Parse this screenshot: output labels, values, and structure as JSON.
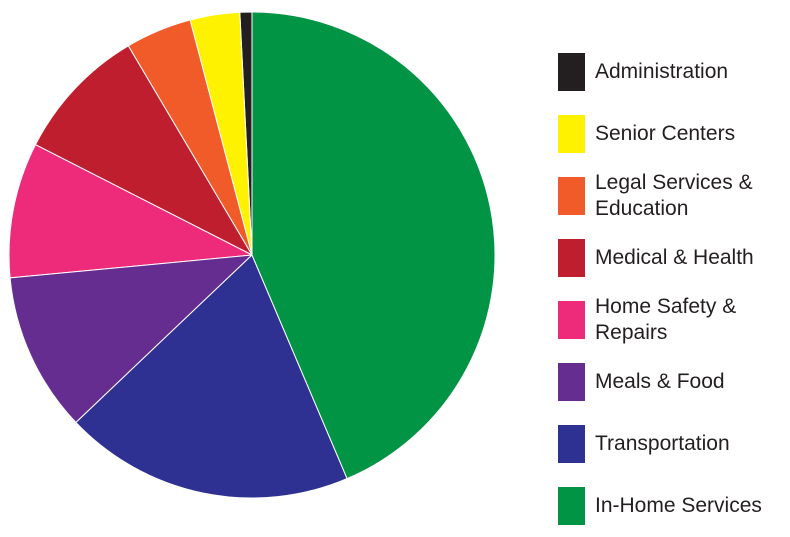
{
  "chart_data": {
    "type": "pie",
    "categories": [
      "Administration",
      "Senior Centers",
      "Legal Services & Education",
      "Medical & Health",
      "Home Safety & Repairs",
      "Meals & Food",
      "Transportation",
      "In-Home Services"
    ],
    "values": [
      0.8,
      3.3,
      4.4,
      9,
      9,
      10.6,
      19.3,
      43.6
    ],
    "colors": [
      "#231f20",
      "#fff200",
      "#f15a29",
      "#be1e2d",
      "#ee2a7b",
      "#662d91",
      "#2e3192",
      "#009444"
    ],
    "legend": "right"
  }
}
